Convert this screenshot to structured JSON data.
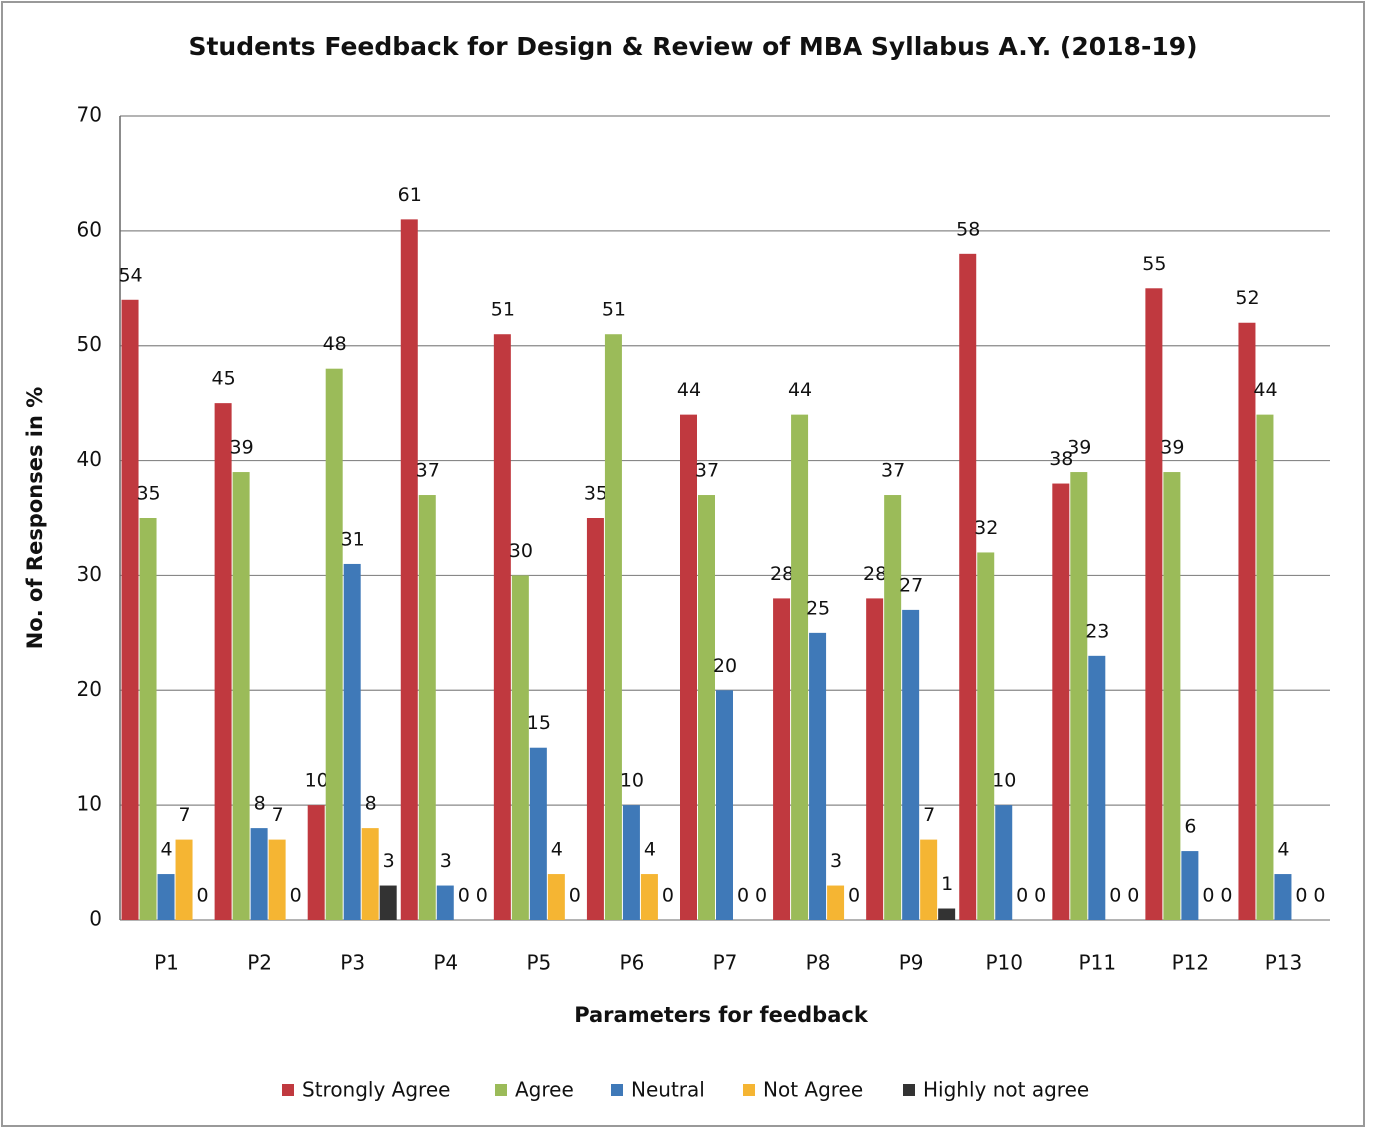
{
  "chart_data": {
    "type": "bar",
    "title": "Students Feedback for Design & Review of MBA Syllabus A.Y. (2018-19)",
    "x_label": "Parameters  for feedback",
    "y_label": "No.  of  Responses in %",
    "categories": [
      "P1",
      "P2",
      "P3",
      "P4",
      "P5",
      "P6",
      "P7",
      "P8",
      "P9",
      "P10",
      "P11",
      "P12",
      "P13"
    ],
    "series": [
      {
        "name": "Strongly Agree",
        "color": "#c0393f",
        "values": [
          54,
          45,
          10,
          61,
          51,
          35,
          44,
          28,
          28,
          58,
          38,
          55,
          52
        ]
      },
      {
        "name": "Agree",
        "color": "#9bbb59",
        "values": [
          35,
          39,
          48,
          37,
          30,
          51,
          37,
          44,
          37,
          32,
          39,
          39,
          44
        ]
      },
      {
        "name": "Neutral",
        "color": "#3f79b8",
        "values": [
          4,
          8,
          31,
          3,
          15,
          10,
          20,
          25,
          27,
          10,
          23,
          6,
          4
        ]
      },
      {
        "name": "Not Agree",
        "color": "#f5b533",
        "values": [
          7,
          7,
          8,
          0,
          4,
          4,
          0,
          3,
          7,
          0,
          0,
          0,
          0
        ]
      },
      {
        "name": "Highly not agree",
        "color": "#333333",
        "values": [
          0,
          0,
          3,
          0,
          0,
          0,
          0,
          0,
          1,
          0,
          0,
          0,
          0
        ]
      }
    ],
    "ylim": [
      0,
      70
    ],
    "yticks": [
      0,
      10,
      20,
      30,
      40,
      50,
      60,
      70
    ],
    "grid": true,
    "legend": "bottom"
  }
}
